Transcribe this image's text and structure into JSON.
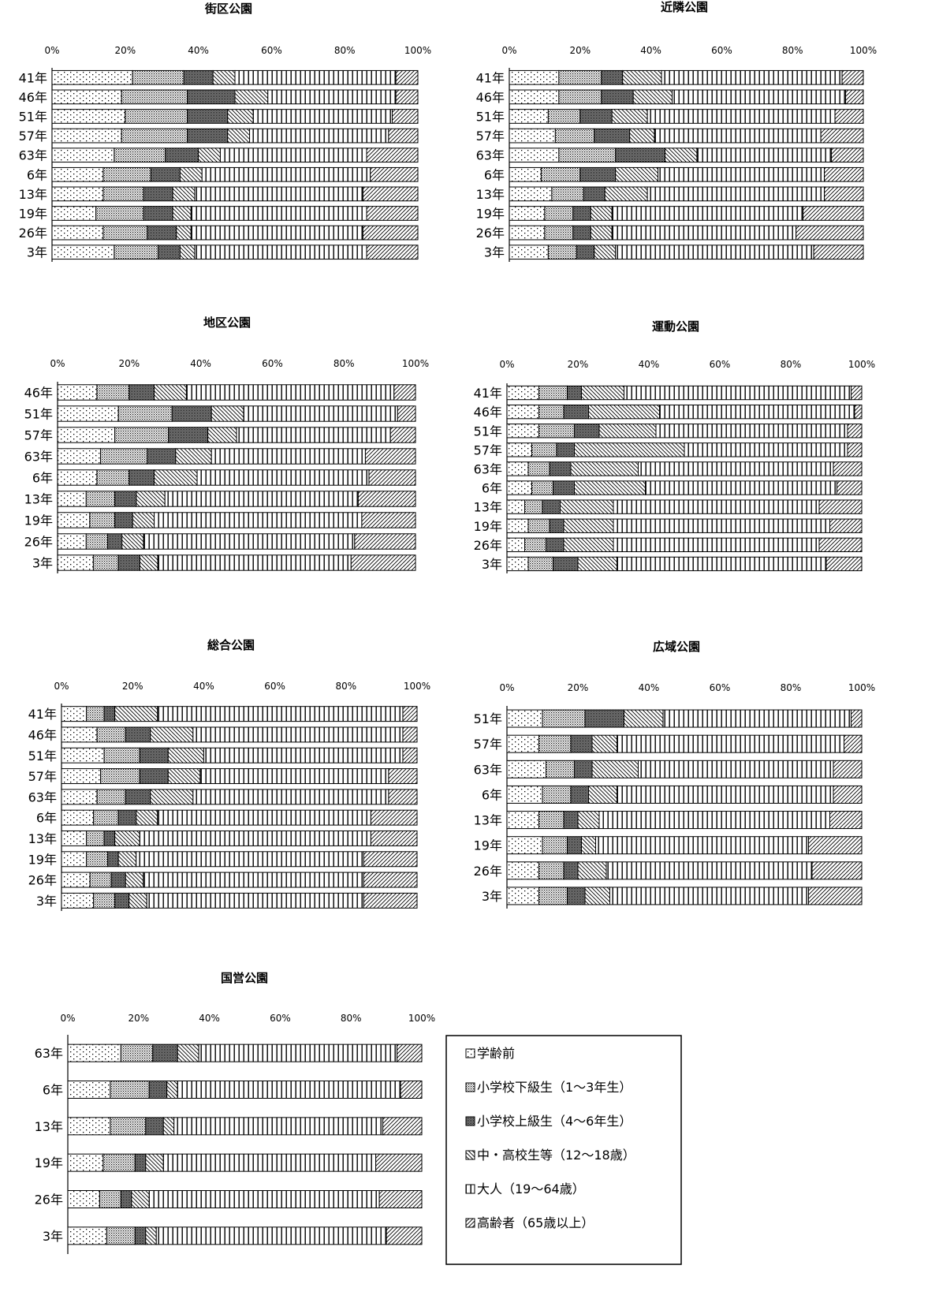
{
  "chart_data": [
    {
      "type": "bar",
      "orientation": "horizontal",
      "stacked": true,
      "title": "街区公園",
      "xlim": [
        0,
        100
      ],
      "xticks": [
        "0%",
        "20%",
        "40%",
        "60%",
        "80%",
        "100%"
      ],
      "categories": [
        "41年",
        "46年",
        "51年",
        "57年",
        "63年",
        "6年",
        "13年",
        "19年",
        "26年",
        "3年"
      ],
      "series": [
        {
          "name": "学齢前",
          "values": [
            22,
            19,
            20,
            19,
            17,
            14,
            14,
            12,
            14,
            17
          ]
        },
        {
          "name": "小学校下級生（1～3年生）",
          "values": [
            14,
            18,
            17,
            18,
            14,
            13,
            11,
            13,
            12,
            12
          ]
        },
        {
          "name": "小学校上級生（4～6年生）",
          "values": [
            8,
            13,
            11,
            11,
            9,
            8,
            8,
            8,
            8,
            6
          ]
        },
        {
          "name": "中・高校生等（12～18歳）",
          "values": [
            6,
            9,
            7,
            6,
            6,
            6,
            6,
            5,
            4,
            4
          ]
        },
        {
          "name": "大人（19～64歳）",
          "values": [
            44,
            35,
            38,
            38,
            40,
            46,
            46,
            48,
            47,
            47
          ]
        },
        {
          "name": "高齢者（65歳以上）",
          "values": [
            6,
            6,
            7,
            8,
            14,
            13,
            15,
            14,
            15,
            14
          ]
        }
      ]
    },
    {
      "type": "bar",
      "orientation": "horizontal",
      "stacked": true,
      "title": "近隣公園",
      "xlim": [
        0,
        100
      ],
      "xticks": [
        "0%",
        "20%",
        "40%",
        "60%",
        "80%",
        "100%"
      ],
      "categories": [
        "41年",
        "46年",
        "51年",
        "57年",
        "63年",
        "6年",
        "13年",
        "19年",
        "26年",
        "3年"
      ],
      "series": [
        {
          "name": "学齢前",
          "values": [
            14,
            14,
            11,
            13,
            14,
            9,
            12,
            10,
            10,
            11
          ]
        },
        {
          "name": "小学校下級生（1～3年生）",
          "values": [
            12,
            12,
            9,
            11,
            16,
            11,
            9,
            8,
            8,
            8
          ]
        },
        {
          "name": "小学校上級生（4～6年生）",
          "values": [
            6,
            9,
            9,
            10,
            14,
            10,
            6,
            5,
            5,
            5
          ]
        },
        {
          "name": "中・高校生等（12～18歳）",
          "values": [
            11,
            11,
            10,
            7,
            9,
            12,
            12,
            6,
            6,
            6
          ]
        },
        {
          "name": "大人（19～64歳）",
          "values": [
            51,
            49,
            53,
            47,
            38,
            47,
            50,
            54,
            52,
            56
          ]
        },
        {
          "name": "高齢者（65歳以上）",
          "values": [
            6,
            5,
            8,
            12,
            9,
            11,
            11,
            17,
            19,
            14
          ]
        }
      ]
    },
    {
      "type": "bar",
      "orientation": "horizontal",
      "stacked": true,
      "title": "地区公園",
      "xlim": [
        0,
        100
      ],
      "xticks": [
        "0%",
        "20%",
        "40%",
        "60%",
        "80%",
        "100%"
      ],
      "categories": [
        "46年",
        "51年",
        "57年",
        "63年",
        "6年",
        "13年",
        "19年",
        "26年",
        "3年"
      ],
      "series": [
        {
          "name": "学齢前",
          "values": [
            11,
            17,
            16,
            12,
            11,
            8,
            9,
            8,
            10
          ]
        },
        {
          "name": "小学校下級生（1～3年生）",
          "values": [
            9,
            15,
            15,
            13,
            9,
            8,
            7,
            6,
            7
          ]
        },
        {
          "name": "小学校上級生（4～6年生）",
          "values": [
            7,
            11,
            11,
            8,
            7,
            6,
            5,
            4,
            6
          ]
        },
        {
          "name": "中・高校生等（12～18歳）",
          "values": [
            9,
            9,
            8,
            10,
            12,
            8,
            6,
            6,
            5
          ]
        },
        {
          "name": "大人（19～64歳）",
          "values": [
            58,
            43,
            43,
            43,
            48,
            54,
            58,
            59,
            54
          ]
        },
        {
          "name": "高齢者（65歳以上）",
          "values": [
            6,
            5,
            7,
            14,
            13,
            16,
            15,
            17,
            18
          ]
        }
      ]
    },
    {
      "type": "bar",
      "orientation": "horizontal",
      "stacked": true,
      "title": "運動公園",
      "xlim": [
        0,
        100
      ],
      "xticks": [
        "0%",
        "20%",
        "40%",
        "60%",
        "80%",
        "100%"
      ],
      "categories": [
        "41年",
        "46年",
        "51年",
        "57年",
        "63年",
        "6年",
        "13年",
        "19年",
        "26年",
        "3年"
      ],
      "series": [
        {
          "name": "学齢前",
          "values": [
            9,
            9,
            9,
            7,
            6,
            7,
            5,
            6,
            5,
            6
          ]
        },
        {
          "name": "小学校下級生（1～3年生）",
          "values": [
            8,
            7,
            10,
            7,
            6,
            6,
            5,
            6,
            6,
            7
          ]
        },
        {
          "name": "小学校上級生（4～6年生）",
          "values": [
            4,
            7,
            7,
            5,
            6,
            6,
            5,
            4,
            5,
            7
          ]
        },
        {
          "name": "中・高校生等（12～18歳）",
          "values": [
            12,
            20,
            16,
            31,
            19,
            20,
            15,
            14,
            14,
            11
          ]
        },
        {
          "name": "大人（19～64歳）",
          "values": [
            64,
            55,
            54,
            46,
            55,
            54,
            58,
            61,
            58,
            59
          ]
        },
        {
          "name": "高齢者（65歳以上）",
          "values": [
            3,
            2,
            4,
            4,
            8,
            7,
            12,
            9,
            12,
            10
          ]
        }
      ]
    },
    {
      "type": "bar",
      "orientation": "horizontal",
      "stacked": true,
      "title": "総合公園",
      "xlim": [
        0,
        100
      ],
      "xticks": [
        "0%",
        "20%",
        "40%",
        "60%",
        "80%",
        "100%"
      ],
      "categories": [
        "41年",
        "46年",
        "51年",
        "57年",
        "63年",
        "6年",
        "13年",
        "19年",
        "26年",
        "3年"
      ],
      "series": [
        {
          "name": "学齢前",
          "values": [
            7,
            10,
            12,
            11,
            10,
            9,
            7,
            7,
            8,
            9
          ]
        },
        {
          "name": "小学校下級生（1～3年生）",
          "values": [
            5,
            8,
            10,
            11,
            8,
            7,
            5,
            6,
            6,
            6
          ]
        },
        {
          "name": "小学校上級生（4～6年生）",
          "values": [
            3,
            7,
            8,
            8,
            7,
            5,
            3,
            3,
            4,
            4
          ]
        },
        {
          "name": "中・高校生等（12～18歳）",
          "values": [
            12,
            12,
            10,
            9,
            12,
            6,
            7,
            5,
            5,
            5
          ]
        },
        {
          "name": "大人（19～64歳）",
          "values": [
            69,
            59,
            56,
            53,
            55,
            60,
            65,
            64,
            62,
            61
          ]
        },
        {
          "name": "高齢者（65歳以上）",
          "values": [
            4,
            4,
            4,
            8,
            8,
            13,
            13,
            15,
            15,
            15
          ]
        }
      ]
    },
    {
      "type": "bar",
      "orientation": "horizontal",
      "stacked": true,
      "title": "広域公園",
      "xlim": [
        0,
        100
      ],
      "xticks": [
        "0%",
        "20%",
        "40%",
        "60%",
        "80%",
        "100%"
      ],
      "categories": [
        "51年",
        "57年",
        "63年",
        "6年",
        "13年",
        "19年",
        "26年",
        "3年"
      ],
      "series": [
        {
          "name": "学齢前",
          "values": [
            10,
            9,
            11,
            10,
            9,
            10,
            9,
            9
          ]
        },
        {
          "name": "小学校下級生（1～3年生）",
          "values": [
            12,
            9,
            8,
            8,
            7,
            7,
            7,
            8
          ]
        },
        {
          "name": "小学校上級生（4～6年生）",
          "values": [
            11,
            6,
            5,
            5,
            4,
            4,
            4,
            5
          ]
        },
        {
          "name": "中・高校生等（12～18歳）",
          "values": [
            11,
            7,
            13,
            8,
            6,
            4,
            8,
            7
          ]
        },
        {
          "name": "大人（19～64歳）",
          "values": [
            53,
            64,
            55,
            61,
            65,
            60,
            58,
            56
          ]
        },
        {
          "name": "高齢者（65歳以上）",
          "values": [
            3,
            5,
            8,
            8,
            9,
            15,
            14,
            15
          ]
        }
      ]
    },
    {
      "type": "bar",
      "orientation": "horizontal",
      "stacked": true,
      "title": "国営公園",
      "xlim": [
        0,
        100
      ],
      "xticks": [
        "0%",
        "20%",
        "40%",
        "60%",
        "80%",
        "100%"
      ],
      "categories": [
        "63年",
        "6年",
        "13年",
        "19年",
        "26年",
        "3年"
      ],
      "series": [
        {
          "name": "学齢前",
          "values": [
            15,
            12,
            12,
            10,
            9,
            11
          ]
        },
        {
          "name": "小学校下級生（1～3年生）",
          "values": [
            9,
            11,
            10,
            9,
            6,
            8
          ]
        },
        {
          "name": "小学校上級生（4～6年生）",
          "values": [
            7,
            5,
            5,
            3,
            3,
            3
          ]
        },
        {
          "name": "中・高校生等（12～18歳）",
          "values": [
            6,
            3,
            3,
            5,
            5,
            3
          ]
        },
        {
          "name": "大人（19～64歳）",
          "values": [
            56,
            63,
            59,
            60,
            65,
            65
          ]
        },
        {
          "name": "高齢者（65歳以上）",
          "values": [
            7,
            6,
            11,
            13,
            12,
            10
          ]
        }
      ]
    }
  ],
  "legend": {
    "items": [
      {
        "label": "学齢前",
        "pattern": "dots"
      },
      {
        "label": "小学校下級生（1～3年生）",
        "pattern": "fine-dots"
      },
      {
        "label": "小学校上級生（4～6年生）",
        "pattern": "dense-dots"
      },
      {
        "label": "中・高校生等（12～18歳）",
        "pattern": "backslash"
      },
      {
        "label": "大人（19～64歳）",
        "pattern": "vertical-lines"
      },
      {
        "label": "高齢者（65歳以上）",
        "pattern": "forward-slash"
      }
    ]
  }
}
